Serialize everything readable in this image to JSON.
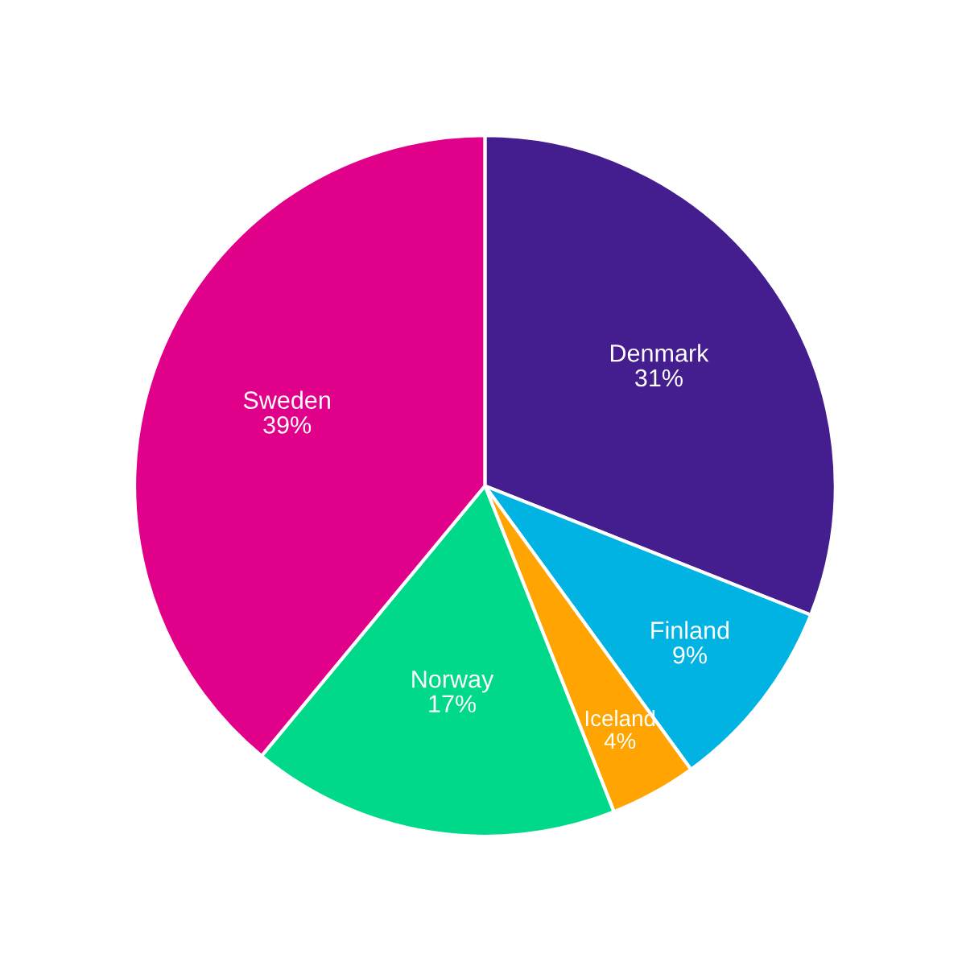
{
  "chart_data": {
    "type": "pie",
    "categories": [
      "Denmark",
      "Finland",
      "Iceland",
      "Norway",
      "Sweden"
    ],
    "values": [
      31,
      9,
      4,
      17,
      39
    ],
    "colors": [
      "#441d8f",
      "#00b3e3",
      "#ffa400",
      "#00d98a",
      "#e0008a"
    ],
    "value_labels": [
      "31%",
      "9%",
      "4%",
      "17%",
      "39%"
    ]
  }
}
